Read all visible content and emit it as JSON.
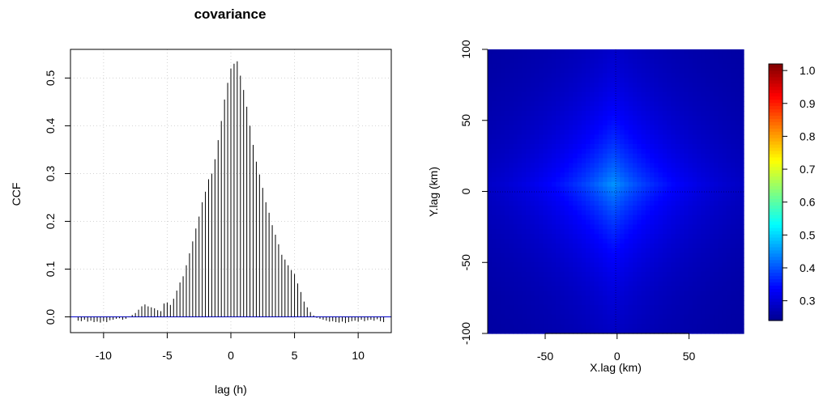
{
  "chart_data": [
    {
      "type": "bar",
      "title": "covariance",
      "xlabel": "lag (h)",
      "ylabel": "CCF",
      "xlim": [
        -12.6,
        12.6
      ],
      "ylim": [
        -0.033,
        0.56
      ],
      "xticks": [
        -10,
        -5,
        0,
        5,
        10
      ],
      "xtick_labels": [
        "-10",
        "-5",
        "0",
        "5",
        "10"
      ],
      "yticks": [
        0.0,
        0.1,
        0.2,
        0.3,
        0.4,
        0.5
      ],
      "ytick_labels": [
        "0.0",
        "0.1",
        "0.2",
        "0.3",
        "0.4",
        "0.5"
      ],
      "grid": true,
      "bar_color": "#000000",
      "baseline_color": "#0000cd",
      "x": [
        -12.0,
        -11.75,
        -11.5,
        -11.25,
        -11.0,
        -10.75,
        -10.5,
        -10.25,
        -10.0,
        -9.75,
        -9.5,
        -9.25,
        -9.0,
        -8.75,
        -8.5,
        -8.25,
        -8.0,
        -7.75,
        -7.5,
        -7.25,
        -7.0,
        -6.75,
        -6.5,
        -6.25,
        -6.0,
        -5.75,
        -5.5,
        -5.25,
        -5.0,
        -4.75,
        -4.5,
        -4.25,
        -4.0,
        -3.75,
        -3.5,
        -3.25,
        -3.0,
        -2.75,
        -2.5,
        -2.25,
        -2.0,
        -1.75,
        -1.5,
        -1.25,
        -1.0,
        -0.75,
        -0.5,
        -0.25,
        0.0,
        0.25,
        0.5,
        0.75,
        1.0,
        1.25,
        1.5,
        1.75,
        2.0,
        2.25,
        2.5,
        2.75,
        3.0,
        3.25,
        3.5,
        3.75,
        4.0,
        4.25,
        4.5,
        4.75,
        5.0,
        5.25,
        5.5,
        5.75,
        6.0,
        6.25,
        6.5,
        6.75,
        7.0,
        7.25,
        7.5,
        7.75,
        8.0,
        8.25,
        8.5,
        8.75,
        9.0,
        9.25,
        9.5,
        9.75,
        10.0,
        10.25,
        10.5,
        10.75,
        11.0,
        11.25,
        11.5,
        11.75,
        12.0
      ],
      "values": [
        -0.008,
        -0.009,
        -0.006,
        -0.01,
        -0.008,
        -0.011,
        -0.01,
        -0.012,
        -0.009,
        -0.011,
        -0.007,
        -0.006,
        -0.004,
        -0.003,
        -0.006,
        -0.004,
        0.001,
        0.004,
        0.008,
        0.015,
        0.022,
        0.026,
        0.022,
        0.02,
        0.018,
        0.014,
        0.012,
        0.028,
        0.03,
        0.025,
        0.038,
        0.055,
        0.072,
        0.085,
        0.108,
        0.133,
        0.158,
        0.185,
        0.21,
        0.24,
        0.262,
        0.288,
        0.3,
        0.33,
        0.37,
        0.41,
        0.455,
        0.49,
        0.52,
        0.53,
        0.535,
        0.505,
        0.475,
        0.44,
        0.4,
        0.36,
        0.325,
        0.298,
        0.27,
        0.24,
        0.218,
        0.192,
        0.172,
        0.152,
        0.13,
        0.12,
        0.108,
        0.098,
        0.09,
        0.07,
        0.052,
        0.032,
        0.02,
        0.01,
        0.003,
        -0.002,
        -0.004,
        -0.006,
        -0.008,
        -0.01,
        -0.009,
        -0.011,
        -0.012,
        -0.01,
        -0.013,
        -0.011,
        -0.009,
        -0.008,
        -0.01,
        -0.006,
        -0.009,
        -0.007,
        -0.006,
        -0.008,
        -0.005,
        -0.009,
        -0.011
      ]
    },
    {
      "type": "heatmap",
      "xlabel": "X.lag (km)",
      "ylabel": "Y.lag (km)",
      "xlim": [
        -90,
        88
      ],
      "ylim": [
        -100,
        100
      ],
      "xticks": [
        -50,
        0,
        50
      ],
      "xtick_labels": [
        "-50",
        "0",
        "50"
      ],
      "yticks": [
        -100,
        -50,
        0,
        50,
        100
      ],
      "ytick_labels": [
        "-100",
        "-50",
        "0",
        "50",
        "100"
      ],
      "zlim": [
        0.24,
        1.02
      ],
      "colorbar_ticks": [
        0.3,
        0.4,
        0.5,
        0.6,
        0.7,
        0.8,
        0.9,
        1.0
      ],
      "colorbar_labels": [
        "0.3",
        "0.4",
        "0.5",
        "0.6",
        "0.7",
        "0.8",
        "0.9",
        "1.0"
      ],
      "colorscale": "jet",
      "center": [
        -3,
        5
      ],
      "peak_value": 0.45,
      "edge_value": 0.25,
      "crosshair": true
    }
  ]
}
